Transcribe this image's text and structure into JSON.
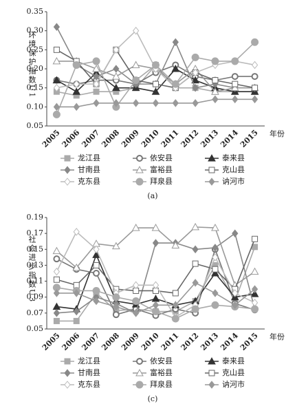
{
  "chart_data": [
    {
      "type": "line",
      "y_label": "环境保护指数U1",
      "x_label": "年份",
      "caption": "(a)",
      "categories": [
        "2005",
        "2006",
        "2007",
        "2008",
        "2009",
        "2010",
        "2011",
        "2012",
        "2013",
        "2014",
        "2015"
      ],
      "ylim": [
        0.05,
        0.35
      ],
      "yticks": [
        0.05,
        {
          "value": 0.1,
          "label": "0.10"
        },
        0.15,
        {
          "value": 0.2,
          "label": "0.20"
        },
        0.25,
        {
          "value": 0.3,
          "label": "0.30"
        },
        0.35
      ],
      "series": [
        {
          "name": "龙江县",
          "color": "#aaaaaa",
          "marker": "square",
          "values": [
            0.14,
            0.13,
            0.14,
            0.14,
            0.15,
            0.21,
            0.15,
            0.15,
            0.14,
            0.14,
            0.14
          ]
        },
        {
          "name": "依安县",
          "color": "#777777",
          "marker": "circle-x",
          "values": [
            0.17,
            0.16,
            0.17,
            0.17,
            0.16,
            0.19,
            0.21,
            0.18,
            0.17,
            0.18,
            0.18
          ]
        },
        {
          "name": "泰来县",
          "color": "#333333",
          "marker": "triangle",
          "values": [
            0.17,
            0.14,
            0.19,
            0.15,
            0.15,
            0.14,
            0.2,
            0.17,
            0.15,
            0.14,
            0.14
          ]
        },
        {
          "name": "甘南县",
          "color": "#888888",
          "marker": "diamond",
          "values": [
            0.31,
            0.21,
            0.18,
            0.2,
            0.16,
            0.16,
            0.27,
            0.15,
            0.16,
            0.15,
            0.15
          ]
        },
        {
          "name": "富裕县",
          "color": "#999999",
          "marker": "triangle-open",
          "values": [
            0.22,
            0.22,
            0.2,
            0.18,
            0.21,
            0.2,
            0.16,
            0.2,
            0.14,
            0.15,
            0.15
          ]
        },
        {
          "name": "克山县",
          "color": "#666666",
          "marker": "square-open",
          "values": [
            0.25,
            0.22,
            0.16,
            0.25,
            0.17,
            0.16,
            0.15,
            0.19,
            0.17,
            0.16,
            0.15
          ]
        },
        {
          "name": "克东县",
          "color": "#bbbbbb",
          "marker": "diamond-open",
          "values": [
            0.15,
            0.16,
            0.16,
            0.25,
            0.3,
            0.2,
            0.15,
            0.19,
            0.21,
            0.22,
            0.21
          ]
        },
        {
          "name": "拜泉县",
          "color": "#aaaaaa",
          "marker": "circle",
          "values": [
            0.08,
            0.21,
            0.22,
            0.1,
            0.17,
            0.21,
            0.16,
            0.23,
            0.22,
            0.22,
            0.27
          ]
        },
        {
          "name": "讷河市",
          "color": "#999999",
          "marker": "diamond",
          "values": [
            0.1,
            0.1,
            0.11,
            0.11,
            0.11,
            0.11,
            0.11,
            0.11,
            0.12,
            0.12,
            0.12
          ]
        }
      ]
    },
    {
      "type": "line",
      "y_label": "社会进步指数U3",
      "x_label": "年份",
      "caption": "(c)",
      "categories": [
        "2005",
        "2006",
        "2007",
        "2008",
        "2009",
        "2010",
        "2011",
        "2012",
        "2013",
        "2014",
        "2015"
      ],
      "ylim": [
        0.05,
        0.19
      ],
      "yticks": [
        0.05,
        0.07,
        0.09,
        0.11,
        0.13,
        0.15,
        0.17,
        0.19
      ],
      "series": [
        {
          "name": "龙江县",
          "color": "#aaaaaa",
          "marker": "square",
          "values": [
            0.06,
            0.06,
            0.095,
            0.073,
            0.075,
            0.072,
            0.072,
            0.085,
            0.13,
            0.085,
            0.153
          ]
        },
        {
          "name": "依安县",
          "color": "#777777",
          "marker": "circle-x",
          "values": [
            0.138,
            0.125,
            0.12,
            0.068,
            0.075,
            0.067,
            0.075,
            0.07,
            0.15,
            0.082,
            0.074
          ]
        },
        {
          "name": "泰来县",
          "color": "#333333",
          "marker": "triangle",
          "values": [
            0.078,
            0.075,
            0.143,
            0.085,
            0.081,
            0.088,
            0.08,
            0.085,
            0.12,
            0.09,
            0.094
          ]
        },
        {
          "name": "甘南县",
          "color": "#888888",
          "marker": "diamond",
          "values": [
            0.07,
            0.072,
            0.09,
            0.082,
            0.07,
            0.158,
            0.158,
            0.15,
            0.152,
            0.17,
            0.075
          ]
        },
        {
          "name": "富裕县",
          "color": "#999999",
          "marker": "triangle-open",
          "values": [
            0.148,
            0.127,
            0.157,
            0.154,
            0.177,
            0.177,
            0.155,
            0.178,
            0.177,
            0.105,
            0.122
          ]
        },
        {
          "name": "克山县",
          "color": "#666666",
          "marker": "square-open",
          "values": [
            0.112,
            0.105,
            0.13,
            0.1,
            0.098,
            0.098,
            0.095,
            0.132,
            0.125,
            0.1,
            0.163
          ]
        },
        {
          "name": "克东县",
          "color": "#bbbbbb",
          "marker": "diamond-open",
          "values": [
            0.122,
            0.172,
            0.15,
            0.095,
            0.105,
            0.105,
            0.065,
            0.08,
            0.14,
            0.095,
            0.083
          ]
        },
        {
          "name": "拜泉县",
          "color": "#aaaaaa",
          "marker": "circle",
          "values": [
            0.102,
            0.098,
            0.098,
            0.09,
            0.085,
            0.072,
            0.063,
            0.075,
            0.08,
            0.078,
            0.075
          ]
        },
        {
          "name": "讷河市",
          "color": "#999999",
          "marker": "diamond",
          "values": [
            0.095,
            0.095,
            0.085,
            0.078,
            0.07,
            0.08,
            0.08,
            0.108,
            0.095,
            0.08,
            0.1
          ]
        }
      ]
    }
  ]
}
